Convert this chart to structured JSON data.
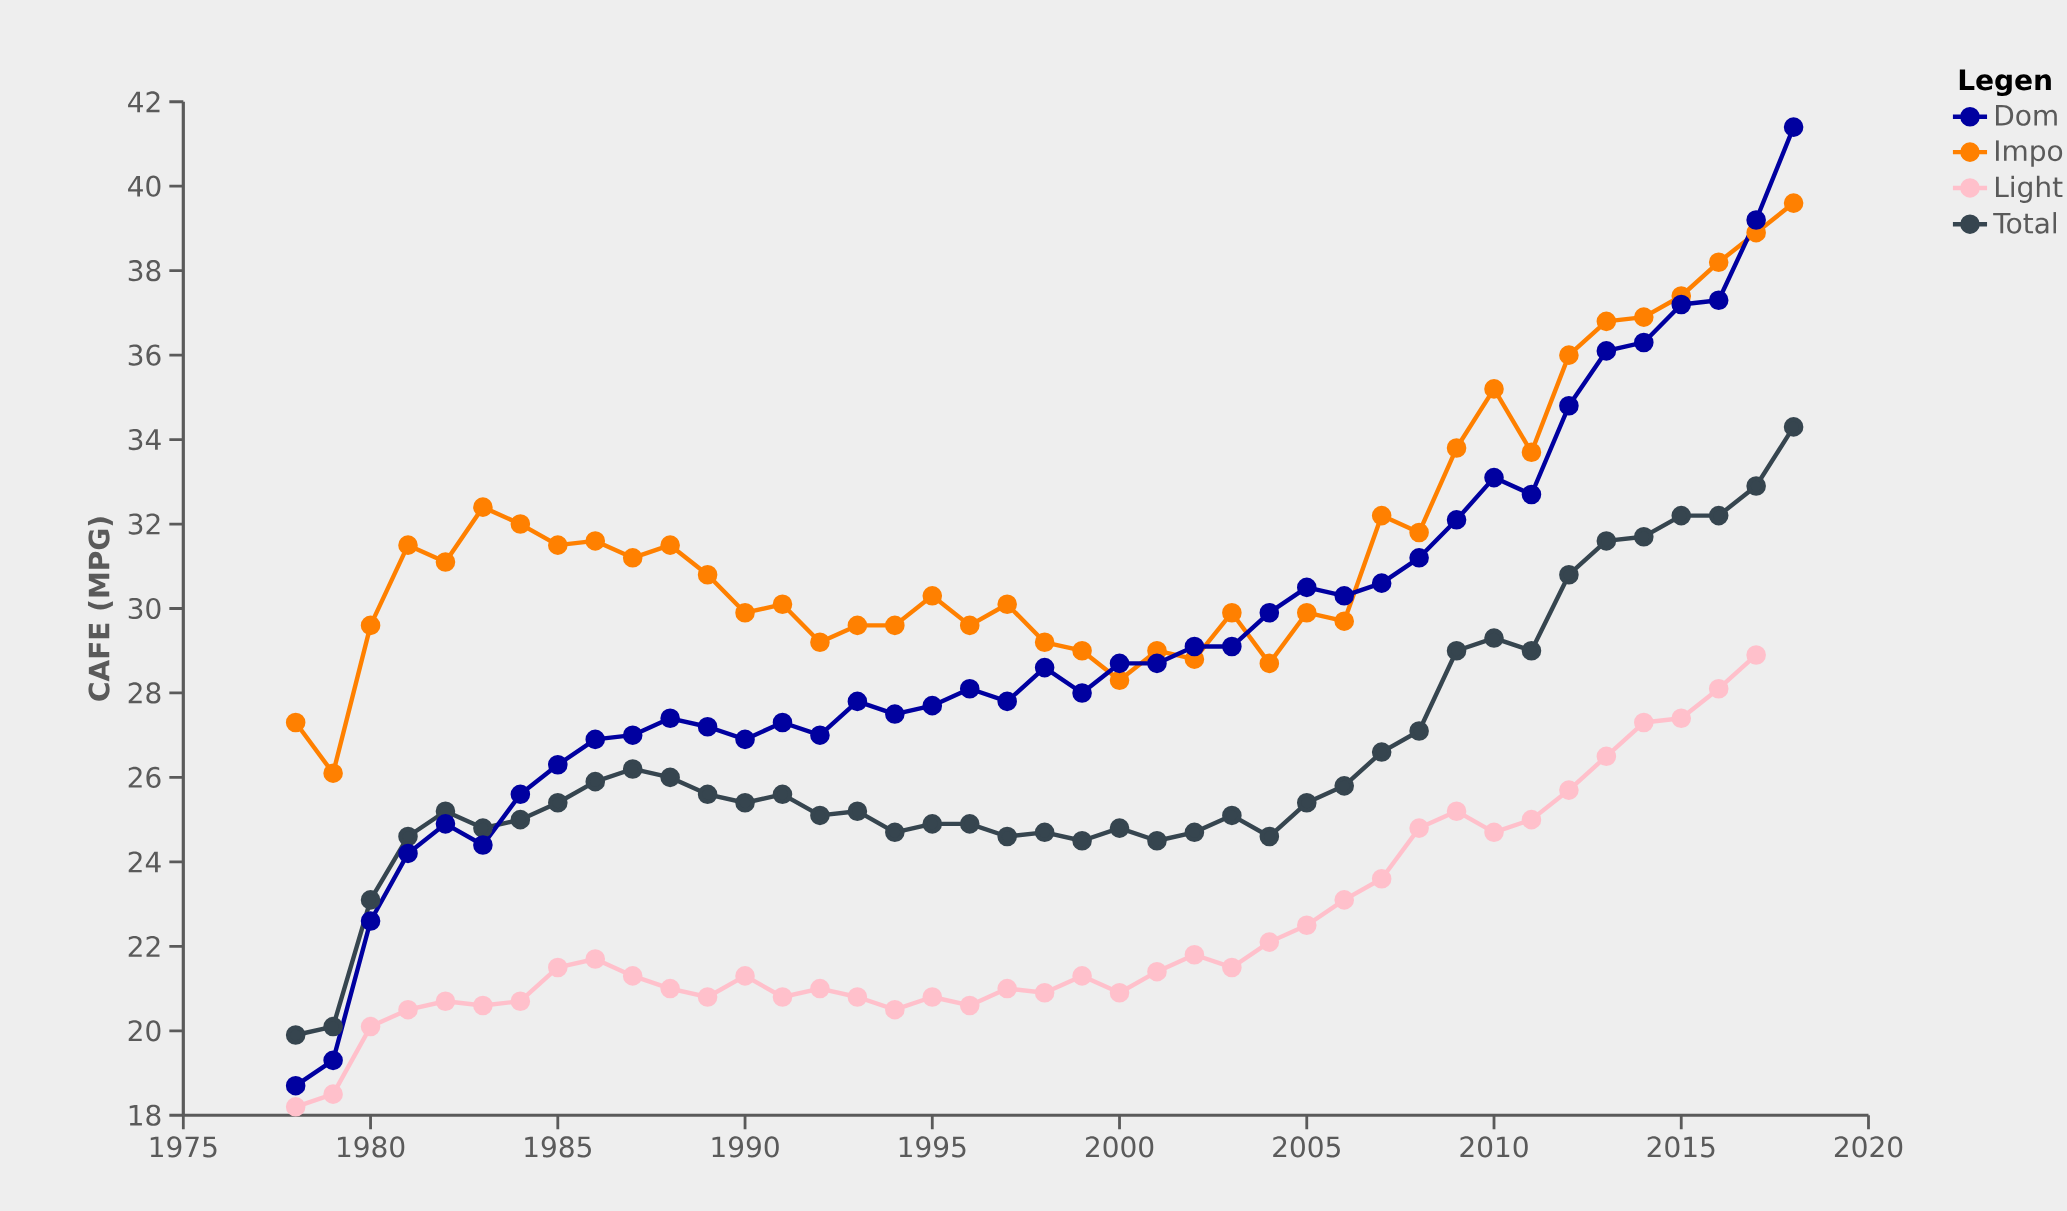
{
  "chart_data": {
    "type": "line",
    "ylabel": "CAFE (MPG)",
    "legend_title": "Legen",
    "legend": "top right",
    "marker": "circle",
    "line_style": "solid",
    "x": [
      1978,
      1979,
      1980,
      1981,
      1982,
      1983,
      1984,
      1985,
      1986,
      1987,
      1988,
      1989,
      1990,
      1991,
      1992,
      1993,
      1994,
      1995,
      1996,
      1997,
      1998,
      1999,
      2000,
      2001,
      2002,
      2003,
      2004,
      2005,
      2006,
      2007,
      2008,
      2009,
      2010,
      2011,
      2012,
      2013,
      2014,
      2015,
      2016,
      2017,
      2018
    ],
    "xlim": [
      1975,
      2020
    ],
    "xticks": [
      1975,
      1980,
      1985,
      1990,
      1995,
      2000,
      2005,
      2010,
      2015,
      2020
    ],
    "ylim": [
      18,
      42
    ],
    "yticks": [
      18,
      20,
      22,
      24,
      26,
      28,
      30,
      32,
      34,
      36,
      38,
      40,
      42
    ],
    "series": [
      {
        "name": "Dom",
        "color": "#0000a0",
        "values": [
          18.7,
          19.3,
          22.6,
          24.2,
          24.9,
          24.4,
          25.6,
          26.3,
          26.9,
          27.0,
          27.4,
          27.2,
          26.9,
          27.3,
          27.0,
          27.8,
          27.5,
          27.7,
          28.1,
          27.8,
          28.6,
          28.0,
          28.7,
          28.7,
          29.1,
          29.1,
          29.9,
          30.5,
          30.3,
          30.6,
          31.2,
          32.1,
          33.1,
          32.7,
          34.8,
          36.1,
          36.3,
          37.2,
          37.3,
          39.2,
          41.4
        ]
      },
      {
        "name": "Impo",
        "color": "#ff8000",
        "values": [
          27.3,
          26.1,
          29.6,
          31.5,
          31.1,
          32.4,
          32.0,
          31.5,
          31.6,
          31.2,
          31.5,
          30.8,
          29.9,
          30.1,
          29.2,
          29.6,
          29.6,
          30.3,
          29.6,
          30.1,
          29.2,
          29.0,
          28.3,
          29.0,
          28.8,
          29.9,
          28.7,
          29.9,
          29.7,
          32.2,
          31.8,
          33.8,
          35.2,
          33.7,
          36.0,
          36.8,
          36.9,
          37.4,
          38.2,
          38.9,
          39.6
        ]
      },
      {
        "name": "Light",
        "color": "#ffc0cb",
        "values": [
          18.2,
          18.5,
          20.1,
          20.5,
          20.7,
          20.6,
          20.7,
          21.5,
          21.7,
          21.3,
          21.0,
          20.8,
          21.3,
          20.8,
          21.0,
          20.8,
          20.5,
          20.8,
          20.6,
          21.0,
          20.9,
          21.3,
          20.9,
          21.4,
          21.8,
          21.5,
          22.1,
          22.5,
          23.1,
          23.6,
          24.8,
          25.2,
          24.7,
          25.0,
          25.7,
          26.5,
          27.3,
          27.4,
          28.1,
          28.9,
          null
        ]
      },
      {
        "name": "Total",
        "color": "#36454f",
        "values": [
          19.9,
          20.1,
          23.1,
          24.6,
          25.2,
          24.8,
          25.0,
          25.4,
          25.9,
          26.2,
          26.0,
          25.6,
          25.4,
          25.6,
          25.1,
          25.2,
          24.7,
          24.9,
          24.9,
          24.6,
          24.7,
          24.5,
          24.8,
          24.5,
          24.7,
          25.1,
          24.6,
          25.4,
          25.8,
          26.6,
          27.1,
          29.0,
          29.3,
          29.0,
          30.8,
          31.6,
          31.7,
          32.2,
          32.2,
          32.9,
          34.3
        ]
      }
    ]
  }
}
